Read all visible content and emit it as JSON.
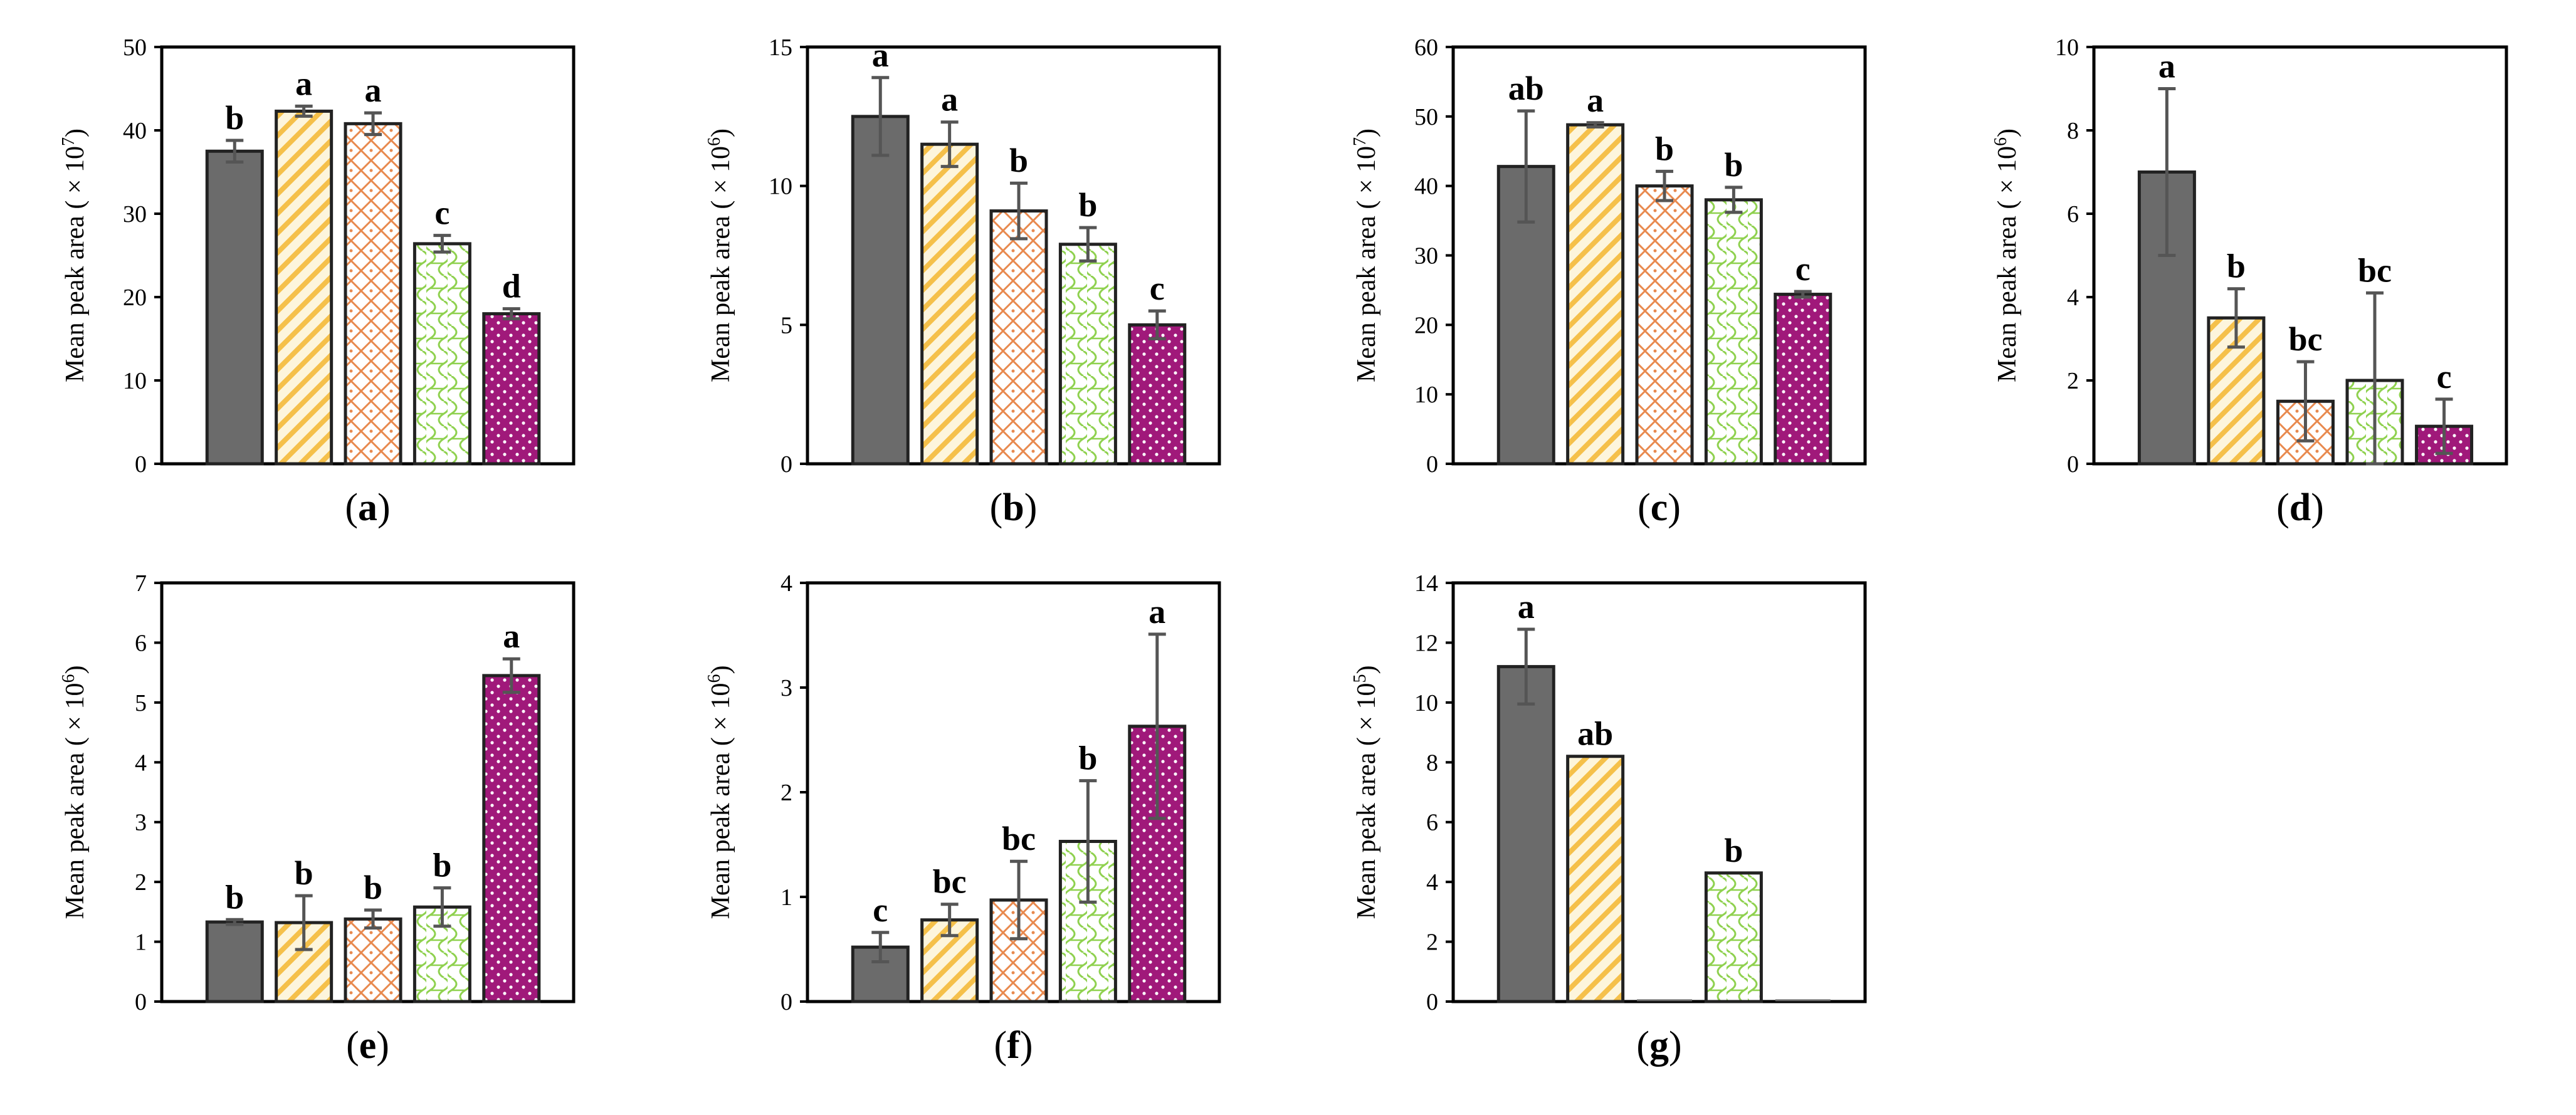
{
  "figure": {
    "panel_count": 7,
    "bar_styles": [
      {
        "fill": "#6b6b6b",
        "pattern": "solid"
      },
      {
        "fill": "#f5c04a",
        "pattern": "diagonal-stripes"
      },
      {
        "fill": "#e8894e",
        "pattern": "diamond-lattice"
      },
      {
        "fill": "#8fd14f",
        "pattern": "wave"
      },
      {
        "fill": "#a0197a",
        "pattern": "dots"
      }
    ]
  },
  "chart_data": [
    {
      "type": "bar",
      "panel_label": [
        "(",
        "a",
        ")"
      ],
      "ylabel": [
        "Mean peak area ( × 10",
        "7",
        ")"
      ],
      "ylim": [
        0,
        50
      ],
      "yticks": [
        "0",
        "10",
        "20",
        "30",
        "40",
        "50"
      ],
      "values": [
        37.5,
        42.3,
        40.8,
        26.4,
        18.0
      ],
      "errors": [
        1.3,
        0.6,
        1.3,
        1.0,
        0.6
      ],
      "letters": [
        "b",
        "a",
        "a",
        "c",
        "d"
      ]
    },
    {
      "type": "bar",
      "panel_label": [
        "(",
        "b",
        ")"
      ],
      "ylabel": [
        "Mean peak area ( × 10",
        "6",
        ")"
      ],
      "ylim": [
        0,
        15
      ],
      "yticks": [
        "0",
        "5",
        "10",
        "15"
      ],
      "values": [
        12.5,
        11.5,
        9.1,
        7.9,
        5.0
      ],
      "errors": [
        1.4,
        0.8,
        1.0,
        0.6,
        0.5
      ],
      "letters": [
        "a",
        "a",
        "b",
        "b",
        "c"
      ]
    },
    {
      "type": "bar",
      "panel_label": [
        "(",
        "c",
        ")"
      ],
      "ylabel": [
        "Mean peak area ( × 10",
        "7",
        ")"
      ],
      "ylim": [
        0,
        60
      ],
      "yticks": [
        "0",
        "10",
        "20",
        "30",
        "40",
        "50",
        "60"
      ],
      "values": [
        42.8,
        48.8,
        40.0,
        38.0,
        24.4
      ],
      "errors": [
        8.0,
        0.3,
        2.1,
        1.8,
        0.4
      ],
      "letters": [
        "ab",
        "a",
        "b",
        "b",
        "c"
      ]
    },
    {
      "type": "bar",
      "panel_label": [
        "(",
        "d",
        ")"
      ],
      "ylabel": [
        "Mean peak area ( × 10",
        "6",
        ")"
      ],
      "ylim": [
        0,
        10
      ],
      "yticks": [
        "0",
        "2",
        "4",
        "6",
        "8",
        "10"
      ],
      "values": [
        7.0,
        3.5,
        1.5,
        2.0,
        0.9
      ],
      "errors": [
        2.0,
        0.7,
        0.95,
        2.1,
        0.65
      ],
      "letters": [
        "a",
        "b",
        "bc",
        "bc",
        "c"
      ]
    },
    {
      "type": "bar",
      "panel_label": [
        "(",
        "e",
        ")"
      ],
      "ylabel": [
        "Mean peak area ( × 10",
        "6",
        ")"
      ],
      "ylim": [
        0,
        7
      ],
      "yticks": [
        "0",
        "1",
        "2",
        "3",
        "4",
        "5",
        "6",
        "7"
      ],
      "values": [
        1.33,
        1.32,
        1.38,
        1.58,
        5.45
      ],
      "errors": [
        0.04,
        0.45,
        0.15,
        0.32,
        0.28
      ],
      "letters": [
        "b",
        "b",
        "b",
        "b",
        "a"
      ]
    },
    {
      "type": "bar",
      "panel_label": [
        "(",
        "f",
        ")"
      ],
      "ylabel": [
        "Mean peak area ( × 10",
        "6",
        ")"
      ],
      "ylim": [
        0,
        4
      ],
      "yticks": [
        "0",
        "1",
        "2",
        "3",
        "4"
      ],
      "values": [
        0.52,
        0.78,
        0.97,
        1.53,
        2.63
      ],
      "errors": [
        0.14,
        0.15,
        0.37,
        0.58,
        0.88
      ],
      "letters": [
        "c",
        "bc",
        "bc",
        "b",
        "a"
      ]
    },
    {
      "type": "bar",
      "panel_label": [
        "(",
        "g",
        ")"
      ],
      "ylabel": [
        "Mean peak area ( × 10",
        "5",
        ")"
      ],
      "ylim": [
        0,
        14
      ],
      "yticks": [
        "0",
        "2",
        "4",
        "6",
        "8",
        "10",
        "12",
        "14"
      ],
      "values": [
        11.2,
        8.2,
        0,
        4.3,
        0
      ],
      "errors": [
        1.25,
        0,
        0,
        0,
        0
      ],
      "letters": [
        "a",
        "ab",
        "",
        "b",
        ""
      ]
    }
  ]
}
